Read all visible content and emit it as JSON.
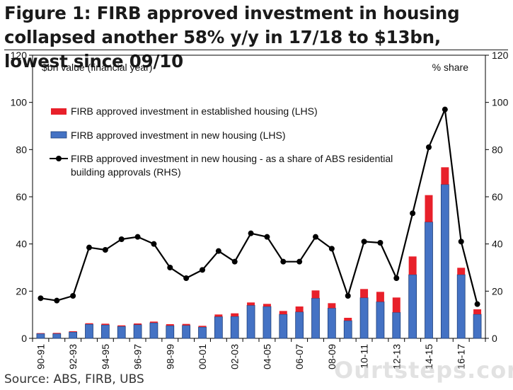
{
  "title": "Figure 1: FIRB approved investment in housing collapsed another 58% y/y in 17/18 to $13bn, lowest since 09/10",
  "source": "Source:  ABS, FIRB, UBS",
  "watermark": "Ourtsteps.com.au",
  "chart_data": {
    "type": "bar",
    "left_axis_label": "$bn value (financial year)",
    "right_axis_label": "% share",
    "ylim": [
      0,
      120
    ],
    "ylim_right": [
      0,
      120
    ],
    "y_ticks": [
      0,
      20,
      40,
      60,
      80,
      100,
      120
    ],
    "grid": false,
    "legend_position": "top-left",
    "categories": [
      "90-91",
      "91-92",
      "92-93",
      "93-94",
      "94-95",
      "95-96",
      "96-97",
      "97-98",
      "98-99",
      "99-00",
      "00-01",
      "01-02",
      "02-03",
      "03-04",
      "04-05",
      "05-06",
      "06-07",
      "07-08",
      "08-09",
      "09-10",
      "10-11",
      "11-12",
      "12-13",
      "13-14",
      "14-15",
      "15-16",
      "16-17",
      "17-18"
    ],
    "x_tick_labels": [
      "90-91",
      "92-93",
      "94-95",
      "96-97",
      "98-99",
      "00-01",
      "02-03",
      "04-05",
      "06-07",
      "08-09",
      "10-11",
      "12-13",
      "14-15",
      "16-17"
    ],
    "series": [
      {
        "name": "FIRB approved investment in new housing (LHS)",
        "type": "bar",
        "axis": "left",
        "color": "#4472c4",
        "values": [
          2,
          2,
          2.7,
          6,
          5.7,
          5.1,
          5.8,
          6.6,
          5.4,
          5.5,
          4.8,
          9.2,
          9.3,
          14,
          13.5,
          10.2,
          11.2,
          17,
          12.8,
          7.5,
          17.2,
          15.5,
          11,
          27,
          49.3,
          65.2,
          27,
          10.2
        ]
      },
      {
        "name": "FIRB approved investment in established housing (LHS)",
        "type": "bar",
        "axis": "left",
        "color": "#e8202a",
        "values": [
          0.2,
          0.3,
          0.3,
          0.4,
          0.5,
          0.4,
          0.5,
          0.5,
          0.6,
          0.6,
          0.5,
          0.9,
          1.3,
          1.2,
          1.1,
          1.4,
          2.3,
          3.3,
          2.1,
          1.2,
          3.7,
          4.2,
          6.3,
          7.7,
          11.4,
          7.3,
          2.9,
          2.1
        ]
      },
      {
        "name": "FIRB approved investment in new housing - as a share of ABS residential building approvals (RHS)",
        "type": "line",
        "axis": "right",
        "color": "#000000",
        "values": [
          17,
          16,
          18,
          38.5,
          37.5,
          42,
          43,
          40,
          30,
          25.5,
          29,
          37,
          32.5,
          44.5,
          43,
          32.5,
          32.5,
          43,
          38,
          18,
          41,
          40.5,
          25.5,
          53,
          81,
          97,
          41,
          14.5
        ]
      }
    ],
    "legend": [
      {
        "label": "FIRB approved investment in established housing (LHS)",
        "color": "#e8202a",
        "kind": "bar"
      },
      {
        "label": "FIRB approved investment in new housing (LHS)",
        "color": "#4472c4",
        "kind": "bar"
      },
      {
        "label": "FIRB approved investment in new housing - as a share of ABS residential",
        "label_line2": "building approvals (RHS)",
        "color": "#000000",
        "kind": "line-marker"
      }
    ]
  }
}
